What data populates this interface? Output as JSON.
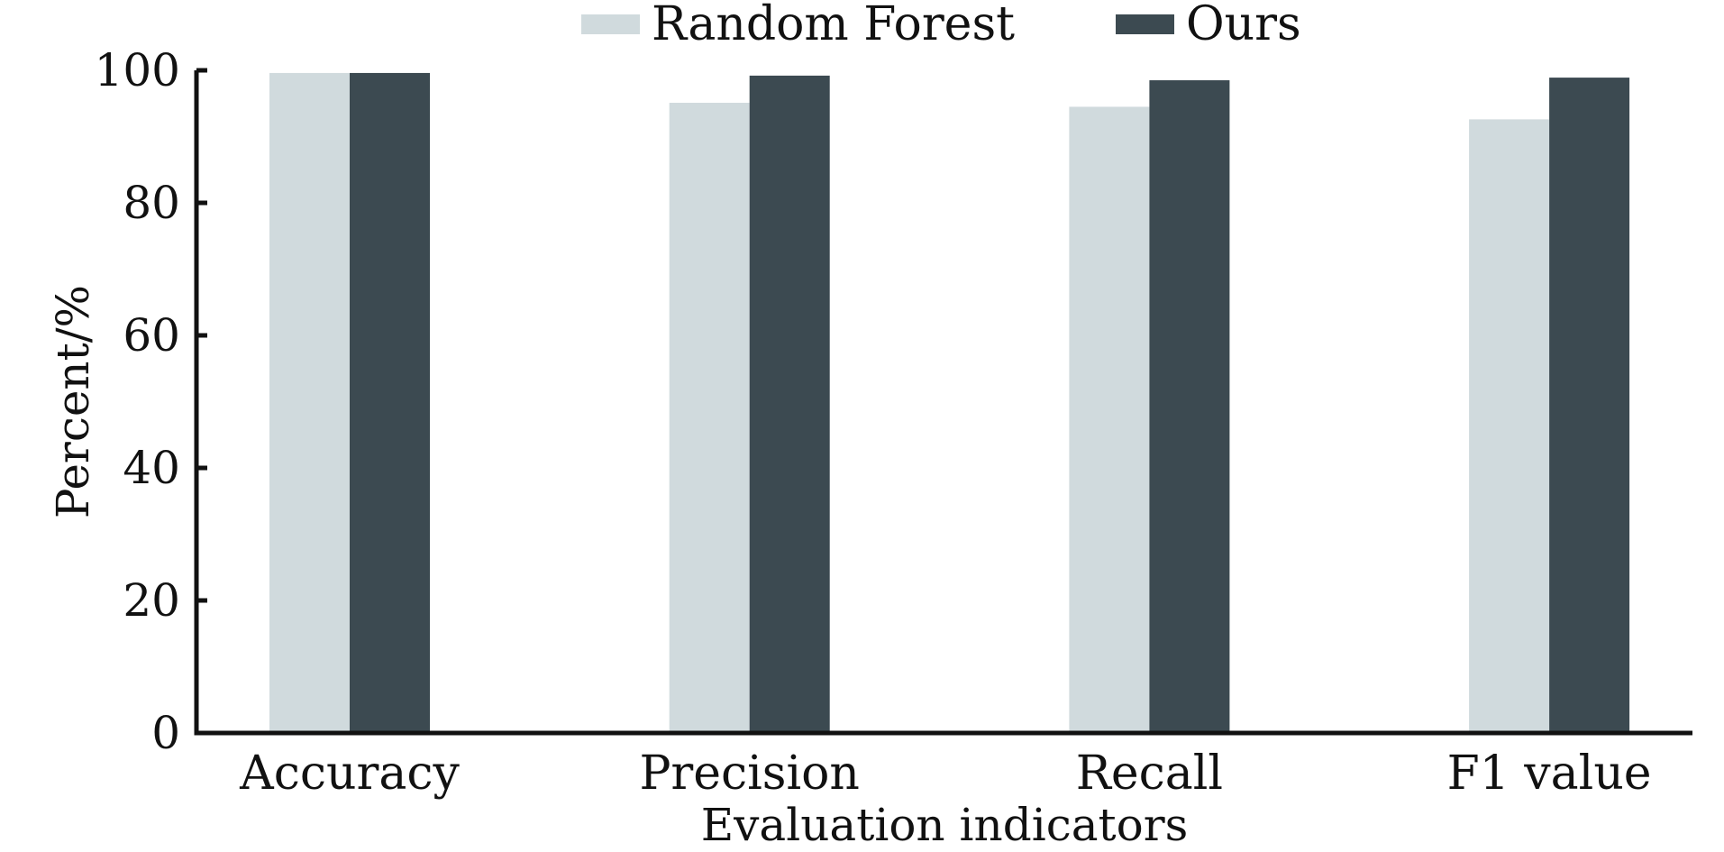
{
  "chart_data": {
    "type": "bar",
    "title": "",
    "xlabel": "Evaluation indicators",
    "ylabel": "Percent/%",
    "categories": [
      "Accuracy",
      "Precision",
      "Recall",
      "F1 value"
    ],
    "series": [
      {
        "name": "Random Forest",
        "values": [
          99.6,
          95.1,
          94.5,
          92.6
        ],
        "color": "#d0dadd"
      },
      {
        "name": "Ours",
        "values": [
          99.6,
          99.2,
          98.5,
          98.9
        ],
        "color": "#3c4a51"
      }
    ],
    "ylim": [
      0,
      100
    ],
    "yticks": [
      0,
      20,
      40,
      60,
      80,
      100
    ],
    "grid": false,
    "legend": "top-center"
  }
}
